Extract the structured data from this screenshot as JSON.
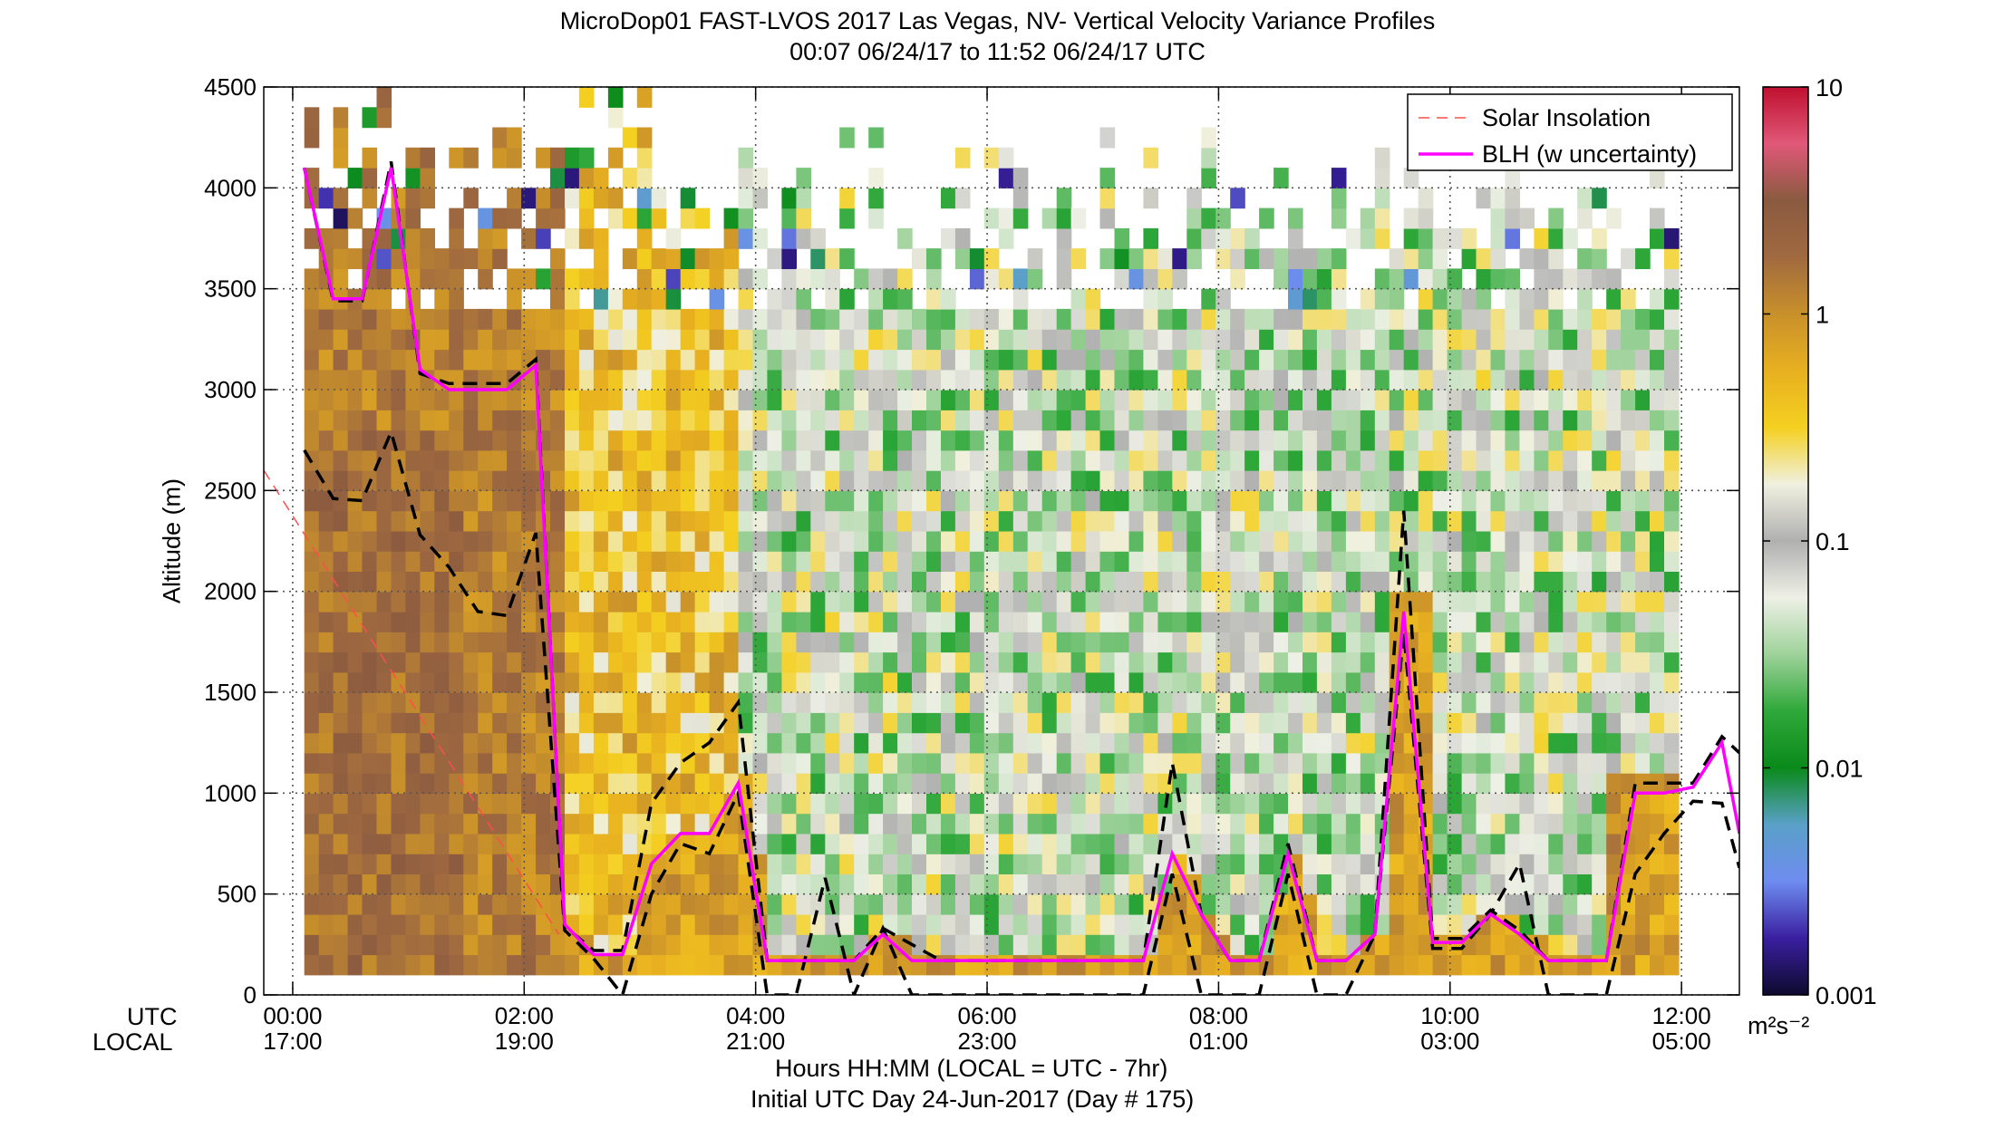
{
  "chart_data": {
    "type": "heatmap",
    "title": "MicroDop01 FAST-LVOS 2017 Las Vegas, NV- Vertical Velocity Variance Profiles",
    "subtitle": "00:07 06/24/17 to 11:52 06/24/17  UTC",
    "ylabel": "Altitude (m)",
    "xlabel": "Hours HH:MM  (LOCAL = UTC - 7hr)",
    "xlabel2": "Initial UTC Day 24-Jun-2017 (Day # 175)",
    "row_labels": {
      "utc": "UTC",
      "local": "LOCAL"
    },
    "ylim": [
      0,
      4500
    ],
    "xlim_hours": [
      -0.25,
      12.5
    ],
    "y_ticks": [
      "0",
      "500",
      "1000",
      "1500",
      "2000",
      "2500",
      "3000",
      "3500",
      "4000",
      "4500"
    ],
    "x_ticks_utc": [
      "00:00",
      "02:00",
      "04:00",
      "06:00",
      "08:00",
      "10:00",
      "12:00"
    ],
    "x_ticks_local": [
      "17:00",
      "19:00",
      "21:00",
      "23:00",
      "01:00",
      "03:00",
      "05:00"
    ],
    "grid": true,
    "colorbar": {
      "scale": "log",
      "range": [
        0.001,
        10
      ],
      "tick_labels": [
        "0.001",
        "0.01",
        "0.1",
        "1",
        "10"
      ],
      "units": "m²s⁻²",
      "stops": [
        "#0d0a2e",
        "#3a1fa0",
        "#6e8cf0",
        "#5aa0c8",
        "#0a8a1a",
        "#2fa83a",
        "#9ed29a",
        "#eef0e6",
        "#b0b0b0",
        "#f0f0e0",
        "#f4d020",
        "#e8b020",
        "#c8902a",
        "#a06a40",
        "#8a5a40",
        "#e05878",
        "#c01030"
      ]
    },
    "legend_position": "top-right",
    "legend": [
      {
        "name": "Solar Insolation",
        "color": "#ff4d4d",
        "style": "dashed"
      },
      {
        "name": "BLH (w uncertainty)",
        "color": "#ff00ff",
        "style": "solid"
      }
    ],
    "series": [
      {
        "key": "blh",
        "x": [
          0.1,
          0.35,
          0.6,
          0.85,
          1.1,
          1.35,
          1.6,
          1.85,
          2.1,
          2.35,
          2.6,
          2.85,
          3.1,
          3.35,
          3.6,
          3.85,
          4.1,
          4.35,
          4.6,
          4.85,
          5.1,
          5.35,
          5.6,
          5.85,
          6.1,
          6.35,
          6.6,
          6.85,
          7.1,
          7.35,
          7.6,
          7.85,
          8.1,
          8.35,
          8.6,
          8.85,
          9.1,
          9.35,
          9.6,
          9.85,
          10.1,
          10.35,
          10.6,
          10.85,
          11.1,
          11.35,
          11.6,
          11.85,
          12.1,
          12.35,
          12.5
        ],
        "y": [
          4100,
          3450,
          3450,
          4100,
          3100,
          3000,
          3000,
          3000,
          3120,
          350,
          200,
          200,
          650,
          800,
          800,
          1050,
          170,
          170,
          170,
          170,
          300,
          170,
          170,
          170,
          170,
          170,
          170,
          170,
          170,
          170,
          700,
          400,
          170,
          170,
          700,
          170,
          170,
          300,
          1900,
          260,
          260,
          400,
          300,
          170,
          170,
          170,
          1000,
          1000,
          1030,
          1250,
          800
        ]
      },
      {
        "key": "blh_upper",
        "x": [
          0.1,
          0.35,
          0.6,
          0.85,
          1.1,
          1.35,
          1.6,
          1.85,
          2.1,
          2.35,
          2.6,
          2.85,
          3.1,
          3.35,
          3.6,
          3.85,
          4.1,
          4.35,
          4.6,
          4.85,
          5.1,
          5.35,
          5.6,
          5.85,
          6.1,
          6.35,
          6.6,
          6.85,
          7.1,
          7.35,
          7.6,
          7.85,
          8.1,
          8.35,
          8.6,
          8.85,
          9.1,
          9.35,
          9.6,
          9.85,
          10.1,
          10.35,
          10.6,
          10.85,
          11.1,
          11.35,
          11.6,
          11.85,
          12.1,
          12.35,
          12.5
        ],
        "y": [
          4100,
          3440,
          3440,
          4130,
          3080,
          3030,
          3030,
          3030,
          3150,
          340,
          220,
          220,
          950,
          1150,
          1250,
          1450,
          170,
          170,
          170,
          170,
          330,
          250,
          170,
          170,
          170,
          170,
          170,
          170,
          170,
          170,
          1150,
          400,
          170,
          170,
          750,
          170,
          170,
          300,
          2400,
          280,
          280,
          420,
          320,
          170,
          170,
          170,
          1050,
          1050,
          1050,
          1280,
          1200
        ]
      },
      {
        "key": "blh_lower",
        "x": [
          0.1,
          0.35,
          0.6,
          0.85,
          1.1,
          1.35,
          1.6,
          1.85,
          2.1,
          2.35,
          2.6,
          2.85,
          3.1,
          3.35,
          3.6,
          3.85,
          4.1,
          4.35,
          4.6,
          4.85,
          5.1,
          5.35,
          5.6,
          5.85,
          6.1,
          6.35,
          6.6,
          6.85,
          7.1,
          7.35,
          7.6,
          7.85,
          8.1,
          8.35,
          8.6,
          8.85,
          9.1,
          9.35,
          9.6,
          9.85,
          10.1,
          10.35,
          10.6,
          10.85,
          11.1,
          11.35,
          11.6,
          11.85,
          12.1,
          12.35,
          12.5
        ],
        "y": [
          2700,
          2460,
          2450,
          2790,
          2280,
          2120,
          1900,
          1880,
          2290,
          320,
          180,
          0,
          500,
          750,
          700,
          1000,
          0,
          0,
          580,
          0,
          330,
          0,
          0,
          0,
          0,
          0,
          0,
          0,
          0,
          0,
          600,
          0,
          0,
          0,
          600,
          0,
          0,
          300,
          1800,
          230,
          230,
          400,
          650,
          0,
          0,
          0,
          600,
          800,
          960,
          950,
          630
        ]
      },
      {
        "key": "solar_insolation",
        "x": [
          -0.25,
          2.3
        ],
        "y": [
          2600,
          300
        ]
      }
    ]
  }
}
